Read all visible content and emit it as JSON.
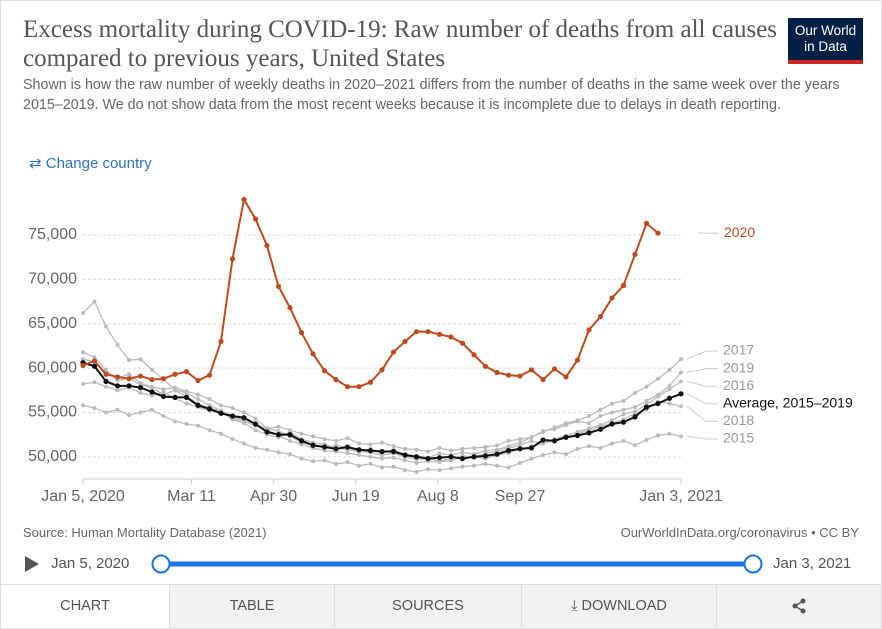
{
  "header": {
    "title": "Excess mortality during COVID-19: Raw number of deaths from all causes compared to previous years, United States",
    "subtitle": "Shown is how the raw number of weekly deaths in 2020–2021 differs from the number of deaths in the same week over the years 2015–2019. We do not show data from the most recent weeks because it is incomplete due to delays in death reporting.",
    "logo": "Our World in Data",
    "change_country": "Change country"
  },
  "chart_data": {
    "type": "line",
    "x": [
      "2020-01-05",
      "2020-01-12",
      "2020-01-19",
      "2020-01-26",
      "2020-02-02",
      "2020-02-09",
      "2020-02-16",
      "2020-02-23",
      "2020-03-01",
      "2020-03-08",
      "2020-03-15",
      "2020-03-22",
      "2020-03-29",
      "2020-04-05",
      "2020-04-12",
      "2020-04-19",
      "2020-04-26",
      "2020-05-03",
      "2020-05-10",
      "2020-05-17",
      "2020-05-24",
      "2020-05-31",
      "2020-06-07",
      "2020-06-14",
      "2020-06-21",
      "2020-06-28",
      "2020-07-05",
      "2020-07-12",
      "2020-07-19",
      "2020-07-26",
      "2020-08-02",
      "2020-08-09",
      "2020-08-16",
      "2020-08-23",
      "2020-08-30",
      "2020-09-06",
      "2020-09-13",
      "2020-09-20",
      "2020-09-27",
      "2020-10-04",
      "2020-10-11",
      "2020-10-18",
      "2020-10-25",
      "2020-11-01",
      "2020-11-08",
      "2020-11-15",
      "2020-11-22",
      "2020-11-29",
      "2020-12-06",
      "2020-12-13",
      "2020-12-20",
      "2020-12-27",
      "2021-01-03"
    ],
    "xlim": [
      "2020-01-05",
      "2021-01-03"
    ],
    "xticks": [
      {
        "value": "2020-01-05",
        "label": "Jan 5, 2020"
      },
      {
        "value": "2020-03-11",
        "label": "Mar 11"
      },
      {
        "value": "2020-04-30",
        "label": "Apr 30"
      },
      {
        "value": "2020-06-19",
        "label": "Jun 19"
      },
      {
        "value": "2020-08-08",
        "label": "Aug 8"
      },
      {
        "value": "2020-09-27",
        "label": "Sep 27"
      },
      {
        "value": "2021-01-03",
        "label": "Jan 3, 2021"
      }
    ],
    "ylim": [
      47500,
      79500
    ],
    "yticks": [
      {
        "value": 50000,
        "label": "50,000"
      },
      {
        "value": 55000,
        "label": "55,000"
      },
      {
        "value": 60000,
        "label": "60,000"
      },
      {
        "value": 65000,
        "label": "65,000"
      },
      {
        "value": 70000,
        "label": "70,000"
      },
      {
        "value": 75000,
        "label": "75,000"
      }
    ],
    "grid": true,
    "series": [
      {
        "name": "2015",
        "color": "#bbbbbb",
        "values": [
          55800,
          55500,
          55000,
          55300,
          54700,
          55000,
          55300,
          54600,
          54000,
          53700,
          53500,
          53000,
          52600,
          52000,
          51500,
          51000,
          50800,
          50500,
          50300,
          49800,
          49500,
          49600,
          49200,
          49400,
          49000,
          49200,
          48800,
          48900,
          48500,
          48300,
          48600,
          48500,
          48700,
          48900,
          49000,
          49200,
          49000,
          48800,
          49300,
          49800,
          50200,
          50500,
          50300,
          50900,
          51200,
          51000,
          51500,
          51800,
          51300,
          51900,
          52400,
          52600,
          52300
        ]
      },
      {
        "name": "2016",
        "color": "#bbbbbb",
        "values": [
          58200,
          58400,
          57900,
          57500,
          57800,
          57200,
          56900,
          57300,
          56600,
          56000,
          55600,
          55200,
          55000,
          54400,
          54000,
          53500,
          53200,
          52900,
          52300,
          51600,
          51300,
          51000,
          51300,
          51000,
          50600,
          50500,
          50200,
          50400,
          50000,
          49700,
          49800,
          49500,
          49800,
          50100,
          50000,
          50400,
          50600,
          51000,
          51300,
          51800,
          51500,
          52000,
          52400,
          52800,
          53200,
          53600,
          54100,
          54800,
          55100,
          55900,
          56800,
          57600,
          58500
        ]
      },
      {
        "name": "2017",
        "color": "#bbbbbb",
        "values": [
          61800,
          61200,
          59800,
          58600,
          58900,
          58100,
          57800,
          57000,
          57500,
          56800,
          56000,
          55500,
          55100,
          54200,
          53800,
          53000,
          52500,
          52200,
          52800,
          52000,
          51600,
          51400,
          51000,
          50800,
          50600,
          50900,
          50400,
          50800,
          50300,
          50100,
          49900,
          50400,
          50200,
          50500,
          50300,
          50700,
          50800,
          51200,
          51600,
          52200,
          52800,
          53300,
          53800,
          54100,
          54600,
          55300,
          56000,
          56300,
          57200,
          57900,
          58800,
          59800,
          61000
        ]
      },
      {
        "name": "2018",
        "color": "#bbbbbb",
        "values": [
          66200,
          67500,
          64700,
          62600,
          60900,
          61000,
          59800,
          58700,
          57600,
          57200,
          56500,
          55800,
          55200,
          54600,
          54100,
          53700,
          53100,
          52400,
          51800,
          51400,
          51000,
          50700,
          50600,
          50400,
          50200,
          50000,
          49800,
          49900,
          49600,
          49300,
          49500,
          49400,
          49600,
          49900,
          50000,
          49800,
          50200,
          50400,
          50900,
          51200,
          51500,
          51900,
          52100,
          52600,
          53000,
          53400,
          53800,
          54200,
          54900,
          55300,
          56200,
          56000,
          55700
        ]
      },
      {
        "name": "2019",
        "color": "#bbbbbb",
        "values": [
          61000,
          60700,
          59500,
          58900,
          59300,
          58300,
          57900,
          57600,
          57800,
          57400,
          57000,
          56500,
          55800,
          55500,
          55000,
          54300,
          53200,
          53400,
          53000,
          52600,
          52300,
          52000,
          51800,
          52100,
          51500,
          51400,
          51600,
          51200,
          50900,
          50800,
          50600,
          51000,
          50700,
          50900,
          51000,
          51100,
          51300,
          51800,
          52000,
          52200,
          52900,
          53100,
          53600,
          54000,
          53800,
          54600,
          55000,
          55300,
          55600,
          56300,
          57000,
          58000,
          59500
        ]
      },
      {
        "name": "Average, 2015–2019",
        "color": "#111111",
        "values": [
          60600,
          60200,
          58500,
          58000,
          58000,
          57800,
          57300,
          56800,
          56700,
          56700,
          55800,
          55400,
          54900,
          54600,
          54400,
          53700,
          52800,
          52500,
          52500,
          51800,
          51300,
          51100,
          50900,
          51100,
          50800,
          50700,
          50600,
          50600,
          50200,
          50000,
          49800,
          49900,
          50000,
          49800,
          50000,
          50100,
          50300,
          50700,
          50900,
          51000,
          51900,
          51800,
          52200,
          52400,
          52700,
          53100,
          53700,
          53900,
          54500,
          55600,
          56000,
          56600,
          57100
        ]
      },
      {
        "name": "2020",
        "color": "#be4b1f",
        "values": [
          60300,
          60800,
          59300,
          59000,
          58800,
          59100,
          58700,
          58800,
          59300,
          59600,
          58600,
          59200,
          63000,
          72300,
          79000,
          76800,
          73800,
          69200,
          66800,
          64000,
          61600,
          59700,
          58700,
          57900,
          57900,
          58400,
          59800,
          61800,
          63000,
          64100,
          64100,
          63800,
          63500,
          62800,
          61500,
          60200,
          59500,
          59200,
          59100,
          59800,
          58700,
          59900,
          59000,
          60900,
          64300,
          65800,
          67900,
          69300,
          72800,
          76300,
          75200,
          null,
          null
        ]
      }
    ]
  },
  "footer": {
    "source": "Source: Human Mortality Database (2021)",
    "license": "OurWorldInData.org/coronavirus • CC BY"
  },
  "timeline": {
    "start": "Jan 5, 2020",
    "end": "Jan 3, 2021"
  },
  "tabs": [
    "CHART",
    "TABLE",
    "SOURCES",
    "DOWNLOAD"
  ]
}
